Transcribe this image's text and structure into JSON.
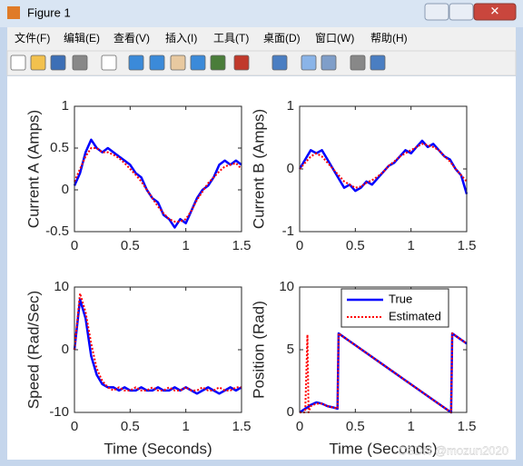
{
  "window": {
    "title": "Figure 1",
    "menu": [
      "文件(F)",
      "编辑(E)",
      "查看(V)",
      "插入(I)",
      "工具(T)",
      "桌面(D)",
      "窗口(W)",
      "帮助(H)"
    ]
  },
  "watermark": "CSDN @mozun2020",
  "chart_data": [
    {
      "type": "line",
      "ylabel": "Current A (Amps)",
      "x": [
        0,
        0.05,
        0.1,
        0.15,
        0.2,
        0.25,
        0.3,
        0.35,
        0.4,
        0.45,
        0.5,
        0.55,
        0.6,
        0.65,
        0.7,
        0.75,
        0.8,
        0.85,
        0.9,
        0.95,
        1,
        1.05,
        1.1,
        1.15,
        1.2,
        1.25,
        1.3,
        1.35,
        1.4,
        1.45,
        1.5
      ],
      "series": [
        {
          "color": "#0000ff",
          "linestyle": "solid",
          "values": [
            0.05,
            0.2,
            0.45,
            0.6,
            0.5,
            0.45,
            0.5,
            0.45,
            0.4,
            0.35,
            0.3,
            0.2,
            0.15,
            0.0,
            -0.1,
            -0.15,
            -0.3,
            -0.35,
            -0.45,
            -0.35,
            -0.4,
            -0.25,
            -0.1,
            0.0,
            0.05,
            0.15,
            0.3,
            0.35,
            0.3,
            0.35,
            0.3
          ]
        },
        {
          "color": "#ff0000",
          "linestyle": "dotted",
          "values": [
            0.1,
            0.25,
            0.4,
            0.5,
            0.5,
            0.45,
            0.45,
            0.42,
            0.38,
            0.32,
            0.25,
            0.18,
            0.1,
            0.0,
            -0.1,
            -0.2,
            -0.28,
            -0.35,
            -0.38,
            -0.38,
            -0.35,
            -0.25,
            -0.12,
            -0.02,
            0.08,
            0.15,
            0.22,
            0.28,
            0.3,
            0.32,
            0.25
          ]
        }
      ],
      "xlim": [
        0,
        1.5
      ],
      "xticks": [
        0,
        0.5,
        1,
        1.5
      ],
      "ylim": [
        -0.5,
        1
      ],
      "yticks": [
        -0.5,
        0,
        0.5,
        1
      ]
    },
    {
      "type": "line",
      "ylabel": "Current B (Amps)",
      "x": [
        0,
        0.05,
        0.1,
        0.15,
        0.2,
        0.25,
        0.3,
        0.35,
        0.4,
        0.45,
        0.5,
        0.55,
        0.6,
        0.65,
        0.7,
        0.75,
        0.8,
        0.85,
        0.9,
        0.95,
        1,
        1.05,
        1.1,
        1.15,
        1.2,
        1.25,
        1.3,
        1.35,
        1.4,
        1.45,
        1.5
      ],
      "series": [
        {
          "color": "#0000ff",
          "linestyle": "solid",
          "values": [
            0,
            0.15,
            0.3,
            0.25,
            0.3,
            0.15,
            0,
            -0.15,
            -0.3,
            -0.25,
            -0.35,
            -0.3,
            -0.2,
            -0.25,
            -0.15,
            -0.05,
            0.05,
            0.1,
            0.2,
            0.3,
            0.25,
            0.35,
            0.45,
            0.35,
            0.4,
            0.3,
            0.2,
            0.15,
            0.0,
            -0.1,
            -0.4
          ]
        },
        {
          "color": "#ff0000",
          "linestyle": "dotted",
          "values": [
            0,
            0.1,
            0.2,
            0.25,
            0.2,
            0.1,
            0,
            -0.1,
            -0.2,
            -0.25,
            -0.3,
            -0.28,
            -0.22,
            -0.18,
            -0.12,
            -0.05,
            0.05,
            0.12,
            0.2,
            0.25,
            0.3,
            0.35,
            0.4,
            0.38,
            0.35,
            0.3,
            0.2,
            0.12,
            0.0,
            -0.1,
            -0.2
          ]
        }
      ],
      "xlim": [
        0,
        1.5
      ],
      "xticks": [
        0,
        0.5,
        1,
        1.5
      ],
      "ylim": [
        -1,
        1
      ],
      "yticks": [
        -1,
        0,
        1
      ]
    },
    {
      "type": "line",
      "xlabel": "Time (Seconds)",
      "ylabel": "Speed (Rad/Sec)",
      "x": [
        0,
        0.05,
        0.1,
        0.15,
        0.2,
        0.25,
        0.3,
        0.35,
        0.4,
        0.45,
        0.5,
        0.55,
        0.6,
        0.65,
        0.7,
        0.75,
        0.8,
        0.85,
        0.9,
        0.95,
        1,
        1.05,
        1.1,
        1.15,
        1.2,
        1.25,
        1.3,
        1.35,
        1.4,
        1.45,
        1.5
      ],
      "series": [
        {
          "color": "#0000ff",
          "linestyle": "solid",
          "values": [
            0,
            8,
            5,
            -1,
            -4,
            -5.5,
            -6,
            -6,
            -6.5,
            -6,
            -6.5,
            -6.5,
            -6,
            -6.5,
            -6.5,
            -6,
            -6.5,
            -6.5,
            -6,
            -6.5,
            -6,
            -6.5,
            -7,
            -6.5,
            -6,
            -6.5,
            -7,
            -6.5,
            -6,
            -6.5,
            -6
          ]
        },
        {
          "color": "#ff0000",
          "linestyle": "dotted",
          "values": [
            0,
            9,
            6,
            1,
            -3,
            -5,
            -6,
            -6.5,
            -6,
            -6.5,
            -6.5,
            -6,
            -6.5,
            -6.5,
            -6,
            -6.5,
            -6.5,
            -6,
            -6.5,
            -6.5,
            -6,
            -6.5,
            -6.5,
            -6,
            -6.5,
            -6.5,
            -6,
            -6.5,
            -6.5,
            -6,
            -6
          ]
        }
      ],
      "xlim": [
        0,
        1.5
      ],
      "xticks": [
        0,
        0.5,
        1,
        1.5
      ],
      "ylim": [
        -10,
        10
      ],
      "yticks": [
        -10,
        0,
        10
      ]
    },
    {
      "type": "line",
      "xlabel": "Time (Seconds)",
      "ylabel": "Position (Rad)",
      "legend": "northeast",
      "x": [
        0,
        0.05,
        0.07,
        0.08,
        0.1,
        0.15,
        0.2,
        0.25,
        0.3,
        0.34,
        0.35,
        0.5,
        0.75,
        1.0,
        1.25,
        1.36,
        1.37,
        1.5
      ],
      "series": [
        {
          "name": "True",
          "color": "#0000ff",
          "linestyle": "solid",
          "values": [
            0,
            0.3,
            0.4,
            0.45,
            0.6,
            0.8,
            0.7,
            0.5,
            0.4,
            0.3,
            6.3,
            5.36,
            3.8,
            2.24,
            0.68,
            0,
            6.3,
            5.49
          ]
        },
        {
          "name": "Estimated",
          "color": "#ff0000",
          "linestyle": "dotted",
          "values": [
            0,
            0,
            6.2,
            0,
            0.5,
            0.7,
            0.7,
            0.5,
            0.4,
            0.3,
            6.3,
            5.36,
            3.8,
            2.24,
            0.68,
            0,
            6.3,
            5.49
          ]
        }
      ],
      "xlim": [
        0,
        1.5
      ],
      "xticks": [
        0,
        0.5,
        1,
        1.5
      ],
      "ylim": [
        0,
        10
      ],
      "yticks": [
        0,
        5,
        10
      ]
    }
  ]
}
